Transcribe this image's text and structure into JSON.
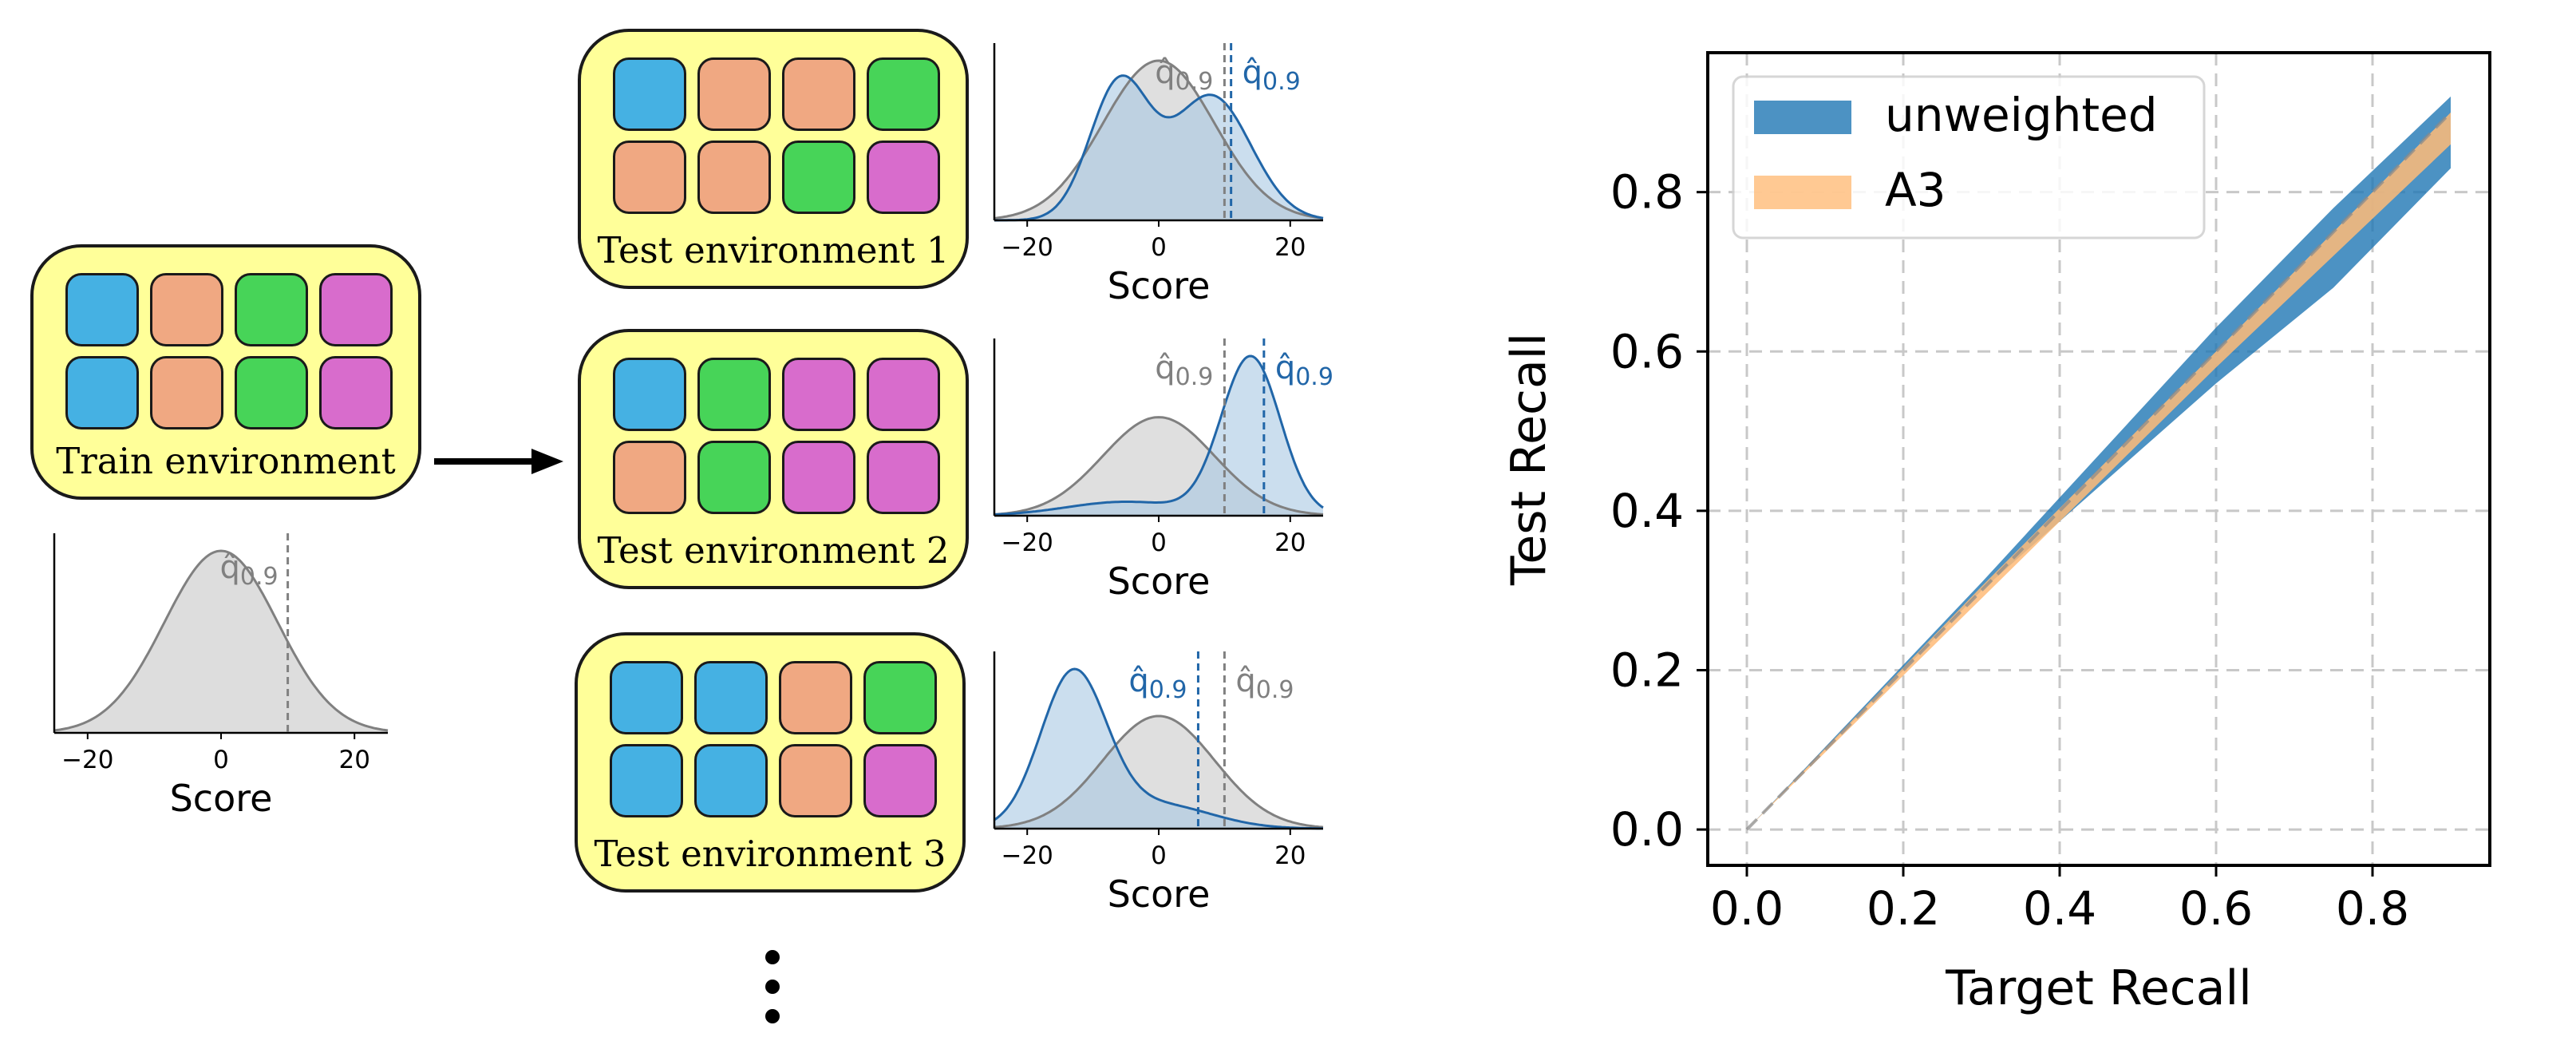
{
  "colors": {
    "blue": "#45b1e3",
    "salmon": "#f0a882",
    "green": "#47d458",
    "magenta": "#d86ccc",
    "env_fill": "#ffff99",
    "train_curve": "#808080",
    "gray_fill": "#d9d9d9",
    "test_curve": "#2166a8",
    "blue_fill": "#a9c8e3"
  },
  "environments": [
    {
      "label": "Train environment",
      "tiles": [
        [
          "blue",
          "salmon",
          "green",
          "magenta"
        ],
        [
          "blue",
          "salmon",
          "green",
          "magenta"
        ]
      ]
    },
    {
      "label": "Test environment 1",
      "tiles": [
        [
          "blue",
          "salmon",
          "salmon",
          "green"
        ],
        [
          "salmon",
          "salmon",
          "green",
          "magenta"
        ]
      ]
    },
    {
      "label": "Test environment 2",
      "tiles": [
        [
          "blue",
          "green",
          "magenta",
          "magenta"
        ],
        [
          "salmon",
          "green",
          "magenta",
          "magenta"
        ]
      ]
    },
    {
      "label": "Test environment 3",
      "tiles": [
        [
          "blue",
          "blue",
          "salmon",
          "green"
        ],
        [
          "blue",
          "blue",
          "salmon",
          "magenta"
        ]
      ]
    }
  ],
  "arrow_icon": "right-arrow-icon",
  "ellipsis_icon": "vertical-ellipsis-icon",
  "quantile_symbol": "q",
  "quantile_subscript": "0.9",
  "chart_data": [
    {
      "type": "area",
      "name": "train-density",
      "xlabel": "Score",
      "xlim": [
        -25,
        25
      ],
      "xticks": [
        -20,
        0,
        20
      ],
      "reference": {
        "mean": 0,
        "sd": 8.5
      },
      "gray_quantile": 10
    },
    {
      "type": "area",
      "name": "test-1-density",
      "xlabel": "Score",
      "xlim": [
        -25,
        25
      ],
      "xticks": [
        -20,
        0,
        20
      ],
      "reference": {
        "mean": 0,
        "sd": 8.5
      },
      "test_mixture": [
        {
          "w": 0.45,
          "mean": -6,
          "sd": 4.5
        },
        {
          "w": 0.55,
          "mean": 8,
          "sd": 6
        }
      ],
      "gray_quantile": 10,
      "blue_quantile": 11,
      "blue_label_side": "right"
    },
    {
      "type": "area",
      "name": "test-2-density",
      "xlabel": "Score",
      "xlim": [
        -25,
        25
      ],
      "xticks": [
        -20,
        0,
        20
      ],
      "reference": {
        "mean": 0,
        "sd": 8.5
      },
      "test_mixture": [
        {
          "w": 0.15,
          "mean": -5,
          "sd": 9
        },
        {
          "w": 0.85,
          "mean": 14,
          "sd": 4.5
        }
      ],
      "gray_quantile": 10,
      "blue_quantile": 16,
      "blue_label_side": "right"
    },
    {
      "type": "area",
      "name": "test-3-density",
      "xlabel": "Score",
      "xlim": [
        -25,
        25
      ],
      "xticks": [
        -20,
        0,
        20
      ],
      "reference": {
        "mean": 0,
        "sd": 8.5
      },
      "test_mixture": [
        {
          "w": 0.8,
          "mean": -13,
          "sd": 5
        },
        {
          "w": 0.2,
          "mean": 0,
          "sd": 8
        }
      ],
      "gray_quantile": 10,
      "blue_quantile": 6,
      "blue_label_side": "left"
    },
    {
      "type": "area",
      "name": "recall-chart",
      "xlabel": "Target Recall",
      "ylabel": "Test Recall",
      "xlim": [
        -0.05,
        0.95
      ],
      "ylim": [
        -0.045,
        0.975
      ],
      "xticks": [
        0.0,
        0.2,
        0.4,
        0.6,
        0.8
      ],
      "yticks": [
        0.0,
        0.2,
        0.4,
        0.6,
        0.8
      ],
      "tick_labels": [
        "0.0",
        "0.2",
        "0.4",
        "0.6",
        "0.8"
      ],
      "grid": true,
      "legend": "top-left",
      "series": [
        {
          "name": "unweighted",
          "color": "#1f77b4",
          "x": [
            0.0,
            0.3,
            0.6,
            0.75,
            0.9
          ],
          "lower": [
            0.0,
            0.3,
            0.56,
            0.68,
            0.83
          ],
          "upper": [
            0.0,
            0.31,
            0.63,
            0.78,
            0.92
          ]
        },
        {
          "name": "A3",
          "color": "#ffbb78",
          "x": [
            0.0,
            0.3,
            0.6,
            0.75,
            0.9
          ],
          "lower": [
            0.0,
            0.29,
            0.58,
            0.72,
            0.86
          ],
          "upper": [
            0.0,
            0.305,
            0.6,
            0.75,
            0.9
          ]
        }
      ]
    }
  ]
}
